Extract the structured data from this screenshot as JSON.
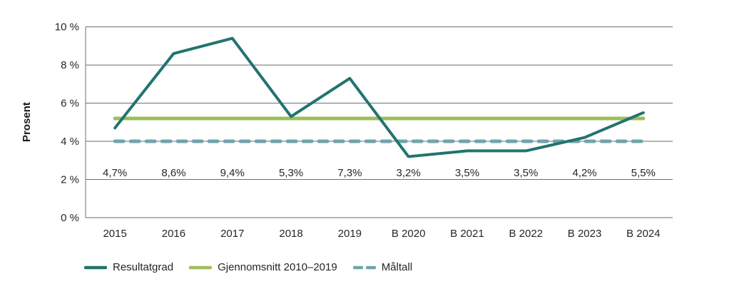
{
  "figure": {
    "background": "#ffffff",
    "grid_color": "#6e6e6e",
    "text_color": "#262626"
  },
  "chart_data": {
    "type": "line",
    "title": "",
    "xlabel": "",
    "ylabel": "Prosent",
    "categories": [
      "2015",
      "2016",
      "2017",
      "2018",
      "2019",
      "B 2020",
      "B 2021",
      "B 2022",
      "B 2023",
      "B 2024"
    ],
    "series": [
      {
        "name": "Resultatgrad",
        "values": [
          4.7,
          8.6,
          9.4,
          5.3,
          7.3,
          3.2,
          3.5,
          3.5,
          4.2,
          5.5
        ],
        "color": "#21746f",
        "style": "solid"
      },
      {
        "name": "Gjennomsnitt 2010–2019",
        "values": [
          5.2,
          5.2,
          5.2,
          5.2,
          5.2,
          5.2,
          5.2,
          5.2,
          5.2,
          5.2
        ],
        "color": "#9cbe5a",
        "style": "solid"
      },
      {
        "name": "Måltall",
        "values": [
          4,
          4,
          4,
          4,
          4,
          4,
          4,
          4,
          4,
          4
        ],
        "color": "#72a3ab",
        "style": "dashed"
      }
    ],
    "data_labels": [
      "4,7%",
      "8,6%",
      "9,4%",
      "5,3%",
      "7,3%",
      "3,2%",
      "3,5%",
      "3,5%",
      "4,2%",
      "5,5%"
    ],
    "ylim": [
      0,
      10
    ],
    "ytick_interval": 2,
    "ytick_labels": [
      "0 %",
      "2 %",
      "4 %",
      "6 %",
      "8 %",
      "10 %"
    ],
    "grid": true,
    "legend_position": "bottom-left"
  },
  "legend": {
    "items": [
      {
        "label": "Resultatgrad",
        "color": "#21746f",
        "style": "solid"
      },
      {
        "label": "Gjennomsnitt 2010–2019",
        "color": "#9cbe5a",
        "style": "solid"
      },
      {
        "label": "Måltall",
        "color": "#72a3ab",
        "style": "dashed"
      }
    ]
  }
}
